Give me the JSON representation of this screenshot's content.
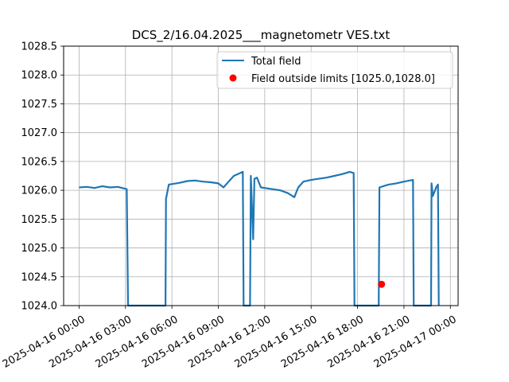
{
  "chart_data": {
    "type": "line",
    "title": "DCS_2/16.04.2025___magnetometr VES.txt",
    "xlabel": "",
    "ylabel": "",
    "ylim": [
      1024.0,
      1028.5
    ],
    "xlim": [
      "2025-04-15 23:00",
      "2025-04-17 00:30"
    ],
    "grid": true,
    "legend": {
      "placement": "upper-right",
      "entries": [
        "Total field",
        "Field outside limits [1025.0,1028.0]"
      ]
    },
    "x_ticks": [
      "2025-04-16 00:00",
      "2025-04-16 03:00",
      "2025-04-16 06:00",
      "2025-04-16 09:00",
      "2025-04-16 12:00",
      "2025-04-16 15:00",
      "2025-04-16 18:00",
      "2025-04-16 21:00",
      "2025-04-17 00:00"
    ],
    "y_ticks": [
      "1024.0",
      "1024.5",
      "1025.0",
      "1025.5",
      "1026.0",
      "1026.5",
      "1027.0",
      "1027.5",
      "1028.0",
      "1028.5"
    ],
    "series": [
      {
        "name": "Total field",
        "color": "#1f77b4",
        "style": "line",
        "points": [
          [
            "2025-04-16 00:00",
            1026.05
          ],
          [
            "2025-04-16 00:30",
            1026.06
          ],
          [
            "2025-04-16 01:00",
            1026.04
          ],
          [
            "2025-04-16 01:30",
            1026.07
          ],
          [
            "2025-04-16 02:00",
            1026.05
          ],
          [
            "2025-04-16 02:30",
            1026.06
          ],
          [
            "2025-04-16 03:05",
            1026.02
          ],
          [
            "2025-04-16 03:10",
            1024.0
          ],
          [
            "2025-04-16 05:35",
            1024.0
          ],
          [
            "2025-04-16 05:37",
            1025.85
          ],
          [
            "2025-04-16 05:48",
            1026.1
          ],
          [
            "2025-04-16 06:30",
            1026.13
          ],
          [
            "2025-04-16 07:00",
            1026.16
          ],
          [
            "2025-04-16 07:30",
            1026.17
          ],
          [
            "2025-04-16 08:00",
            1026.15
          ],
          [
            "2025-04-16 08:30",
            1026.14
          ],
          [
            "2025-04-16 09:00",
            1026.12
          ],
          [
            "2025-04-16 09:20",
            1026.05
          ],
          [
            "2025-04-16 09:40",
            1026.15
          ],
          [
            "2025-04-16 10:00",
            1026.25
          ],
          [
            "2025-04-16 10:25",
            1026.3
          ],
          [
            "2025-04-16 10:35",
            1026.32
          ],
          [
            "2025-04-16 10:38",
            1024.0
          ],
          [
            "2025-04-16 11:03",
            1024.0
          ],
          [
            "2025-04-16 11:06",
            1026.25
          ],
          [
            "2025-04-16 11:15",
            1025.15
          ],
          [
            "2025-04-16 11:20",
            1026.2
          ],
          [
            "2025-04-16 11:30",
            1026.22
          ],
          [
            "2025-04-16 11:45",
            1026.05
          ],
          [
            "2025-04-16 12:30",
            1026.02
          ],
          [
            "2025-04-16 13:00",
            1026.0
          ],
          [
            "2025-04-16 13:30",
            1025.95
          ],
          [
            "2025-04-16 13:55",
            1025.88
          ],
          [
            "2025-04-16 14:10",
            1026.05
          ],
          [
            "2025-04-16 14:30",
            1026.15
          ],
          [
            "2025-04-16 15:00",
            1026.18
          ],
          [
            "2025-04-16 15:30",
            1026.2
          ],
          [
            "2025-04-16 16:00",
            1026.22
          ],
          [
            "2025-04-16 16:30",
            1026.25
          ],
          [
            "2025-04-16 17:00",
            1026.28
          ],
          [
            "2025-04-16 17:30",
            1026.32
          ],
          [
            "2025-04-16 17:45",
            1026.3
          ],
          [
            "2025-04-16 17:48",
            1024.0
          ],
          [
            "2025-04-16 19:22",
            1024.0
          ],
          [
            "2025-04-16 19:25",
            1026.05
          ],
          [
            "2025-04-16 20:00",
            1026.1
          ],
          [
            "2025-04-16 20:30",
            1026.12
          ],
          [
            "2025-04-16 21:00",
            1026.15
          ],
          [
            "2025-04-16 21:35",
            1026.18
          ],
          [
            "2025-04-16 21:38",
            1024.0
          ],
          [
            "2025-04-16 22:45",
            1024.0
          ],
          [
            "2025-04-16 22:47",
            1026.12
          ],
          [
            "2025-04-16 22:52",
            1025.9
          ],
          [
            "2025-04-16 23:05",
            1026.05
          ],
          [
            "2025-04-16 23:12",
            1026.1
          ],
          [
            "2025-04-16 23:15",
            1024.0
          ]
        ]
      },
      {
        "name": "Field outside limits [1025.0,1028.0]",
        "color": "#ff0000",
        "style": "scatter",
        "points": [
          [
            "2025-04-16 19:33",
            1024.37
          ]
        ]
      }
    ]
  }
}
